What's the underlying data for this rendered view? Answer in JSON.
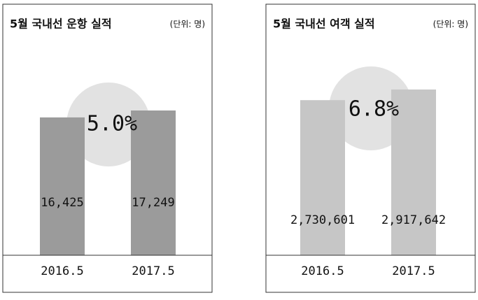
{
  "chart_data": [
    {
      "type": "bar",
      "title": "5월 국내선 운항 실적",
      "unit": "(단위: 명)",
      "annotation": "5.0%",
      "categories": [
        "2016.5",
        "2017.5"
      ],
      "values": [
        16425,
        17249
      ],
      "value_labels": [
        "16,425",
        "17,249"
      ],
      "color": "#9b9b9b"
    },
    {
      "type": "bar",
      "title": "5월 국내선 여객 실적",
      "unit": "(단위: 명)",
      "annotation": "6.8%",
      "categories": [
        "2016.5",
        "2017.5"
      ],
      "values": [
        2730601,
        2917642
      ],
      "value_labels": [
        "2,730,601",
        "2,917,642"
      ],
      "color": "#c6c6c6"
    }
  ]
}
